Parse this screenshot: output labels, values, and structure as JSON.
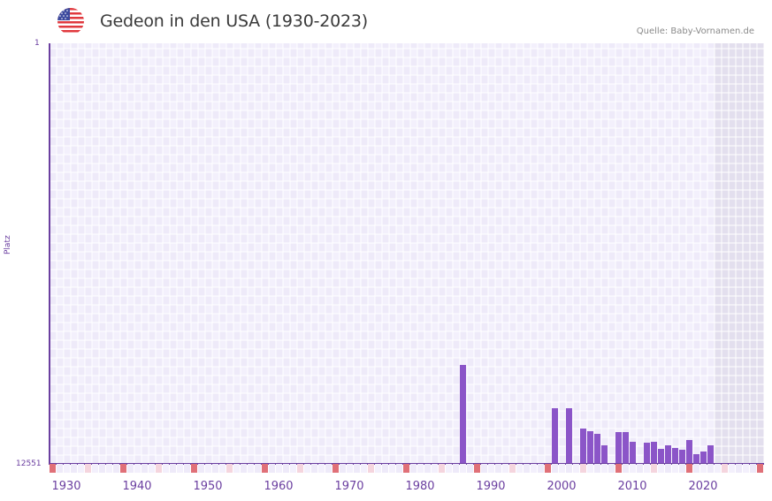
{
  "header": {
    "title": "Gedeon in den USA (1930-2023)",
    "source": "Quelle: Baby-Vornamen.de",
    "flag_icon": "us-flag-icon"
  },
  "axes": {
    "y_top_label": "1",
    "y_bottom_label": "12551",
    "y_title": "Platz",
    "x_labels": [
      "1930",
      "1940",
      "1950",
      "1960",
      "1970",
      "1980",
      "1990",
      "2000",
      "2010",
      "2020"
    ]
  },
  "colors": {
    "bar": "#8b55c8",
    "axis": "#6b3fa0",
    "marker_decade": "#e07078",
    "marker_half": "#f5d5de",
    "cell_a": "#eeeaf9",
    "cell_b": "#f3f0fc",
    "future_cell": "#e3dfee"
  },
  "chart_data": {
    "type": "bar",
    "title": "Gedeon in den USA (1930-2023)",
    "xlabel": "",
    "ylabel": "Platz",
    "ylim": [
      12551,
      1
    ],
    "y_inverted": true,
    "x_range": [
      1928,
      2028
    ],
    "grid": true,
    "legend": "none",
    "x": [
      1986,
      1999,
      2001,
      2003,
      2004,
      2005,
      2006,
      2008,
      2009,
      2010,
      2012,
      2013,
      2014,
      2015,
      2016,
      2017,
      2018,
      2019,
      2020,
      2021
    ],
    "values": [
      9598,
      10890,
      10890,
      11496,
      11575,
      11654,
      11997,
      11602,
      11602,
      11892,
      11918,
      11892,
      12103,
      11997,
      12076,
      12129,
      11839,
      12261,
      12182,
      11997
    ],
    "x_tick_labels": [
      "1930",
      "1940",
      "1950",
      "1960",
      "1970",
      "1980",
      "1990",
      "2000",
      "2010",
      "2020"
    ],
    "shaded_future_from": 2022
  }
}
